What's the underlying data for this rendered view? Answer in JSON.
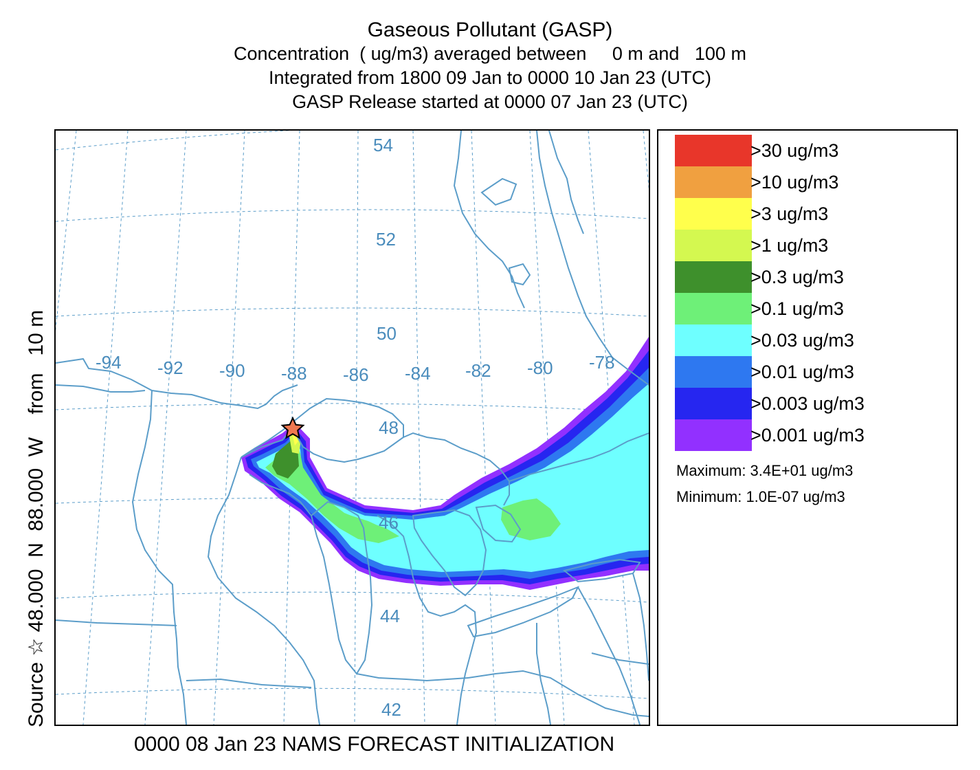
{
  "title": {
    "main": "Gaseous Pollutant (GASP)",
    "line1": "Concentration  ( ug/m3) averaged between     0 m and   100 m",
    "line2": "Integrated from 1800 09 Jan to 0000 10 Jan 23 (UTC)",
    "line3": "GASP Release started at 0000 07 Jan 23 (UTC)"
  },
  "side_label": "Source ☆ 48.000  N  88.000  W    from   10 m",
  "bottom_label": "0000 08 Jan 23 NAMS FORECAST INITIALIZATION",
  "map": {
    "latitude_labels": [
      "54",
      "52",
      "50",
      "48",
      "46",
      "44",
      "42"
    ],
    "longitude_labels": [
      "-94",
      "-92",
      "-90",
      "-88",
      "-86",
      "-84",
      "-82",
      "-80",
      "-78"
    ],
    "source_marker": "star-icon",
    "colors": {
      "boundaries": "#5b9dc9",
      "graticule": "#5b9dc9",
      "label_color": "#4a8cbc",
      "source_star": "#f07850"
    }
  },
  "legend": {
    "items": [
      {
        "label": ">30  ug/m3",
        "color": "#e8362a"
      },
      {
        "label": ">10  ug/m3",
        "color": "#f0a040"
      },
      {
        "label": ">3  ug/m3",
        "color": "#ffff4c"
      },
      {
        "label": ">1  ug/m3",
        "color": "#d4f850"
      },
      {
        "label": ">0.3  ug/m3",
        "color": "#3e902c"
      },
      {
        "label": ">0.1  ug/m3",
        "color": "#6ef078"
      },
      {
        "label": ">0.03  ug/m3",
        "color": "#6effff"
      },
      {
        "label": ">0.01  ug/m3",
        "color": "#2e78f0"
      },
      {
        "label": ">0.003  ug/m3",
        "color": "#2626f0"
      },
      {
        "label": ">0.001  ug/m3",
        "color": "#9230ff"
      }
    ],
    "maximum": "Maximum: 3.4E+01  ug/m3",
    "minimum": "Minimum: 1.0E-07  ug/m3"
  }
}
